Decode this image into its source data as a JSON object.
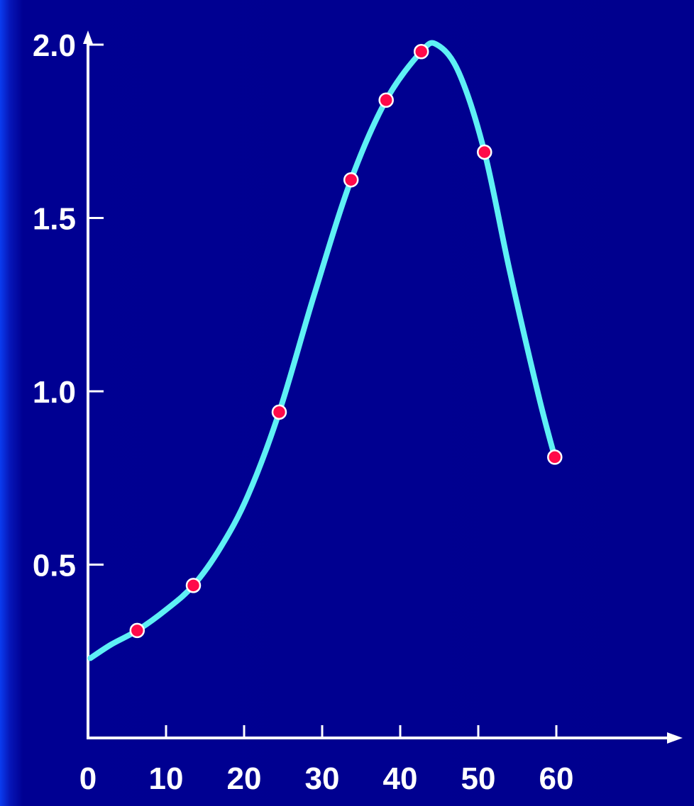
{
  "chart_data": {
    "type": "line",
    "title": "",
    "xlabel": "",
    "ylabel": "",
    "xlim": [
      0,
      60
    ],
    "ylim": [
      0,
      2.0
    ],
    "x_ticks": [
      0,
      10,
      20,
      30,
      40,
      50,
      60
    ],
    "x_tick_labels": [
      "0",
      "10",
      "20",
      "30",
      "40",
      "50",
      "60"
    ],
    "y_ticks": [
      0.5,
      1.0,
      1.5,
      2.0
    ],
    "y_tick_labels": [
      "0.5",
      "1.0",
      "1.5",
      "2.0"
    ],
    "grid": false,
    "legend": "none",
    "colors": {
      "background": "#00008e",
      "axes": "#ffffff",
      "curve": "#5ef0f5",
      "points": "#ff0a4a",
      "point_outline": "#ffffff"
    },
    "series": [
      {
        "points": [
          {
            "x": 6.3,
            "y": 0.31
          },
          {
            "x": 13.5,
            "y": 0.44
          },
          {
            "x": 24.5,
            "y": 0.94
          },
          {
            "x": 33.7,
            "y": 1.61
          },
          {
            "x": 38.2,
            "y": 1.84
          },
          {
            "x": 42.7,
            "y": 1.98
          },
          {
            "x": 50.8,
            "y": 1.69
          },
          {
            "x": 59.8,
            "y": 0.81
          }
        ],
        "curve": [
          {
            "x": 0.3,
            "y": 0.23
          },
          {
            "x": 3.0,
            "y": 0.27
          },
          {
            "x": 6.3,
            "y": 0.31
          },
          {
            "x": 10.0,
            "y": 0.37
          },
          {
            "x": 13.5,
            "y": 0.44
          },
          {
            "x": 17.0,
            "y": 0.55
          },
          {
            "x": 20.5,
            "y": 0.7
          },
          {
            "x": 24.5,
            "y": 0.94
          },
          {
            "x": 29.0,
            "y": 1.28
          },
          {
            "x": 33.7,
            "y": 1.61
          },
          {
            "x": 38.2,
            "y": 1.84
          },
          {
            "x": 42.7,
            "y": 1.98
          },
          {
            "x": 44.7,
            "y": 2.0
          },
          {
            "x": 47.5,
            "y": 1.92
          },
          {
            "x": 50.8,
            "y": 1.69
          },
          {
            "x": 54.0,
            "y": 1.35
          },
          {
            "x": 57.7,
            "y": 0.99
          },
          {
            "x": 59.8,
            "y": 0.81
          }
        ]
      }
    ]
  }
}
